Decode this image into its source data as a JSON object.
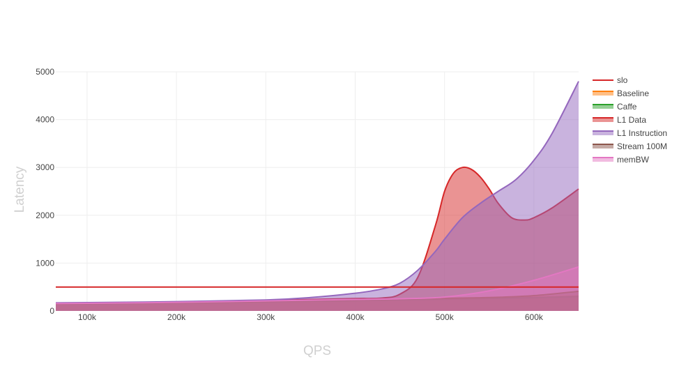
{
  "chart_data": {
    "type": "area",
    "xlabel": "QPS",
    "ylabel": "Latency",
    "xlim": [
      65000,
      650000
    ],
    "ylim": [
      0,
      5000
    ],
    "x_ticks": [
      100000,
      200000,
      300000,
      400000,
      500000,
      600000
    ],
    "x_tick_labels": [
      "100k",
      "200k",
      "300k",
      "400k",
      "500k",
      "600k"
    ],
    "y_ticks": [
      0,
      1000,
      2000,
      3000,
      4000,
      5000
    ],
    "y_tick_labels": [
      "0",
      "1000",
      "2000",
      "3000",
      "4000",
      "5000"
    ],
    "grid": true,
    "legend_position": "right",
    "series": [
      {
        "name": "slo",
        "kind": "line",
        "color": "#d62728",
        "x": [
          65000,
          650000
        ],
        "y": [
          500,
          500
        ]
      },
      {
        "name": "Baseline",
        "kind": "area",
        "color": "#ff7f0e",
        "x": [
          65000,
          100000,
          200000,
          300000,
          400000,
          500000,
          550000,
          600000,
          650000
        ],
        "y": [
          145,
          150,
          170,
          195,
          220,
          250,
          265,
          285,
          310
        ]
      },
      {
        "name": "Caffe",
        "kind": "area",
        "color": "#2ca02c",
        "x": [
          65000,
          100000,
          200000,
          300000,
          400000,
          500000,
          550000,
          600000,
          650000
        ],
        "y": [
          140,
          145,
          165,
          190,
          215,
          245,
          260,
          275,
          300
        ]
      },
      {
        "name": "L1 Data",
        "kind": "area",
        "color": "#d62728",
        "x": [
          65000,
          100000,
          200000,
          300000,
          350000,
          400000,
          430000,
          450000,
          470000,
          490000,
          500000,
          510000,
          520000,
          530000,
          540000,
          550000,
          560000,
          575000,
          590000,
          600000,
          620000,
          650000
        ],
        "y": [
          150,
          160,
          190,
          220,
          240,
          260,
          270,
          350,
          700,
          1800,
          2500,
          2880,
          3000,
          2960,
          2800,
          2550,
          2250,
          1950,
          1900,
          1950,
          2150,
          2550
        ]
      },
      {
        "name": "L1 Instruction",
        "kind": "area",
        "color": "#9467bd",
        "x": [
          65000,
          100000,
          200000,
          300000,
          350000,
          400000,
          430000,
          450000,
          470000,
          490000,
          500000,
          520000,
          540000,
          560000,
          580000,
          600000,
          620000,
          650000
        ],
        "y": [
          170,
          175,
          195,
          230,
          280,
          370,
          460,
          580,
          850,
          1250,
          1500,
          1950,
          2250,
          2500,
          2750,
          3150,
          3700,
          4800
        ]
      },
      {
        "name": "Stream 100M",
        "kind": "area",
        "color": "#8c564b",
        "x": [
          65000,
          100000,
          200000,
          300000,
          400000,
          500000,
          550000,
          600000,
          650000
        ],
        "y": [
          150,
          155,
          175,
          200,
          230,
          265,
          280,
          320,
          410
        ]
      },
      {
        "name": "memBW",
        "kind": "area",
        "color": "#e377c2",
        "x": [
          65000,
          100000,
          200000,
          300000,
          400000,
          450000,
          500000,
          550000,
          600000,
          650000
        ],
        "y": [
          155,
          160,
          180,
          210,
          240,
          255,
          290,
          420,
          640,
          920
        ]
      }
    ]
  }
}
